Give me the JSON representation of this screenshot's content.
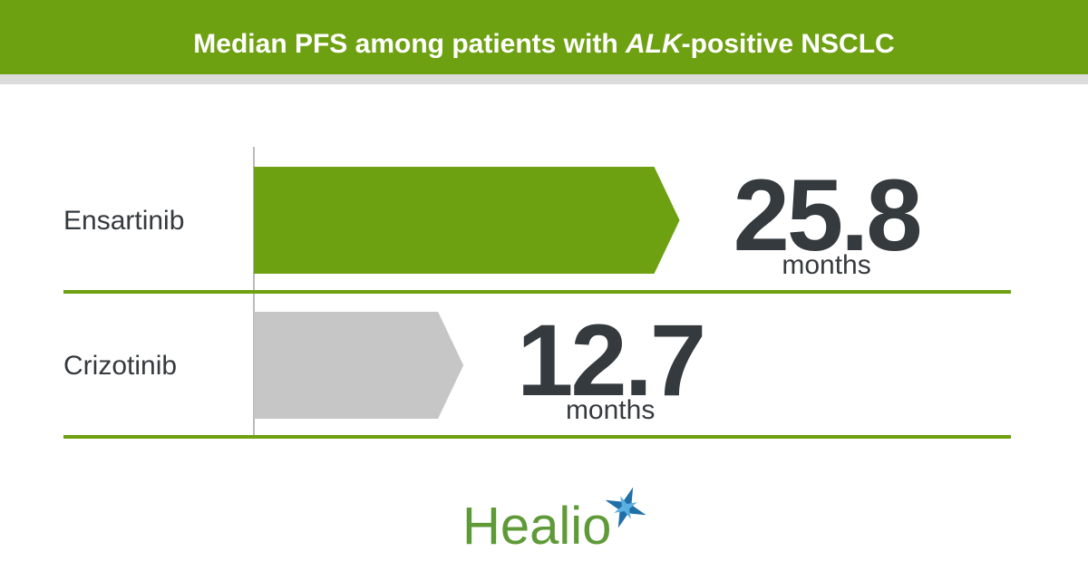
{
  "chart_data": {
    "type": "bar",
    "title": [
      "Median PFS among patients with ",
      "ALK",
      "-positive NSCLC"
    ],
    "categories": [
      "Ensartinib",
      "Crizotinib"
    ],
    "values": [
      25.8,
      12.7
    ],
    "colors": [
      "#6ea111",
      "#c6c6c6"
    ],
    "unit": "months"
  },
  "logo": "Healio"
}
